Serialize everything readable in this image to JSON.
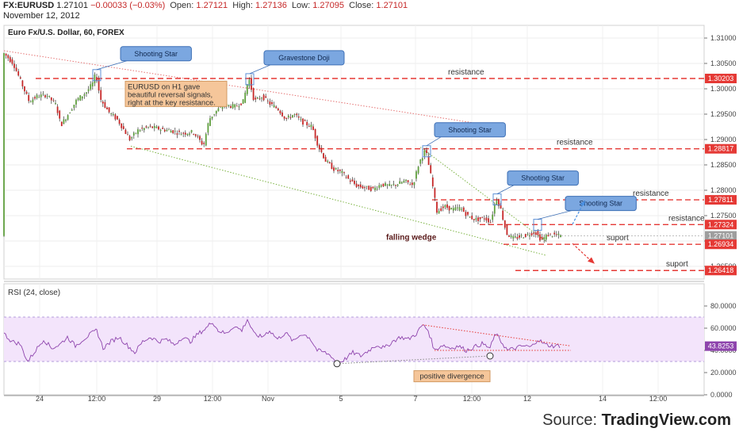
{
  "header": {
    "symbol": "FX:EURUSD",
    "last": "1.27101",
    "change": "−0.00033 (−0.03%)",
    "open_label": "Open:",
    "open": "1.27121",
    "high_label": "High:",
    "high": "1.27136",
    "low_label": "Low:",
    "low": "1.27095",
    "close_label": "Close:",
    "close": "1.27101",
    "date": "November 12, 2012"
  },
  "source": {
    "prefix": "Source: ",
    "brand": "TradingView.com"
  },
  "colors": {
    "up": "#5f9f3e",
    "down": "#c62828",
    "resistance": "#e53935",
    "callout_fill": "#7ba7e0",
    "callout_border": "#3d6fb5",
    "note_fill": "#f5c69a",
    "rsi_line": "#8e44ad",
    "rsi_band": "#f3e4fb"
  },
  "chart_data": [
    {
      "type": "candlestick",
      "title": "Euro Fx/U.S. Dollar, 60, FOREX",
      "ylim": [
        1.2625,
        1.3125
      ],
      "y_ticks": [
        "1.31000",
        "1.30500",
        "1.30000",
        "1.29500",
        "1.29000",
        "1.28500",
        "1.28000",
        "1.27500",
        "1.27000",
        "1.26500"
      ],
      "x_ticks": [
        {
          "label": "24",
          "t": 50
        },
        {
          "label": "12:00",
          "t": 122
        },
        {
          "label": "29",
          "t": 198
        },
        {
          "label": "12:00",
          "t": 268
        },
        {
          "label": "Nov",
          "t": 338
        },
        {
          "label": "5",
          "t": 430
        },
        {
          "label": "7",
          "t": 524
        },
        {
          "label": "12:00",
          "t": 595
        },
        {
          "label": "12",
          "t": 665
        },
        {
          "label": "14",
          "t": 760
        },
        {
          "label": "12:00",
          "t": 830
        }
      ],
      "price_path": [
        [
          5,
          1.3072
        ],
        [
          18,
          1.305
        ],
        [
          30,
          1.3005
        ],
        [
          38,
          1.2975
        ],
        [
          48,
          1.2985
        ],
        [
          60,
          1.2988
        ],
        [
          72,
          1.2968
        ],
        [
          78,
          1.2928
        ],
        [
          88,
          1.2952
        ],
        [
          98,
          1.2978
        ],
        [
          110,
          1.2993
        ],
        [
          118,
          1.301
        ],
        [
          122,
          1.303
        ],
        [
          128,
          1.298
        ],
        [
          138,
          1.2955
        ],
        [
          150,
          1.2938
        ],
        [
          165,
          1.29
        ],
        [
          175,
          1.2918
        ],
        [
          190,
          1.2925
        ],
        [
          205,
          1.292
        ],
        [
          215,
          1.2918
        ],
        [
          230,
          1.2912
        ],
        [
          245,
          1.2915
        ],
        [
          258,
          1.2888
        ],
        [
          265,
          1.294
        ],
        [
          275,
          1.2958
        ],
        [
          285,
          1.2968
        ],
        [
          298,
          1.2965
        ],
        [
          308,
          1.2975
        ],
        [
          315,
          1.3022
        ],
        [
          322,
          1.2975
        ],
        [
          332,
          1.2985
        ],
        [
          342,
          1.297
        ],
        [
          352,
          1.296
        ],
        [
          362,
          1.294
        ],
        [
          372,
          1.295
        ],
        [
          382,
          1.2935
        ],
        [
          395,
          1.2925
        ],
        [
          402,
          1.289
        ],
        [
          412,
          1.2858
        ],
        [
          422,
          1.2842
        ],
        [
          432,
          1.2835
        ],
        [
          442,
          1.282
        ],
        [
          452,
          1.2808
        ],
        [
          462,
          1.2805
        ],
        [
          472,
          1.2802
        ],
        [
          482,
          1.2812
        ],
        [
          492,
          1.2808
        ],
        [
          502,
          1.2812
        ],
        [
          512,
          1.2818
        ],
        [
          522,
          1.281
        ],
        [
          530,
          1.2855
        ],
        [
          538,
          1.288
        ],
        [
          546,
          1.2818
        ],
        [
          552,
          1.2758
        ],
        [
          562,
          1.2768
        ],
        [
          572,
          1.2762
        ],
        [
          582,
          1.2765
        ],
        [
          592,
          1.2748
        ],
        [
          602,
          1.2742
        ],
        [
          612,
          1.2745
        ],
        [
          620,
          1.2738
        ],
        [
          627,
          1.2785
        ],
        [
          632,
          1.2768
        ],
        [
          640,
          1.2715
        ],
        [
          648,
          1.2705
        ],
        [
          656,
          1.2708
        ],
        [
          666,
          1.2712
        ],
        [
          676,
          1.2718
        ],
        [
          684,
          1.2702
        ],
        [
          692,
          1.2712
        ],
        [
          700,
          1.2712
        ],
        [
          708,
          1.271
        ]
      ],
      "last_price": 1.27101,
      "price_labels": [
        {
          "price": 1.30203,
          "label": "1.30203",
          "kind": "resistance"
        },
        {
          "price": 1.28817,
          "label": "1.28817",
          "kind": "resistance"
        },
        {
          "price": 1.27811,
          "label": "1.27811",
          "kind": "resistance"
        },
        {
          "price": 1.27324,
          "label": "1.27324",
          "kind": "resistance"
        },
        {
          "price": 1.27101,
          "label": "1.27101",
          "kind": "last"
        },
        {
          "price": 1.26934,
          "label": "1.26934",
          "kind": "resistance"
        },
        {
          "price": 1.26418,
          "label": "1.26418",
          "kind": "resistance"
        }
      ],
      "levels": [
        {
          "price": 1.30203,
          "t0": 45,
          "t1": 888,
          "label": "resistance",
          "label_t": 565
        },
        {
          "price": 1.28817,
          "t0": 160,
          "t1": 888,
          "label": "resistance",
          "label_t": 702
        },
        {
          "price": 1.27811,
          "t0": 545,
          "t1": 888,
          "label": "resistance",
          "label_t": 798
        },
        {
          "price": 1.27324,
          "t0": 605,
          "t1": 888,
          "label": "resistance",
          "label_t": 843
        },
        {
          "price": 1.26934,
          "t0": 635,
          "t1": 888,
          "label": "suport",
          "label_t": 765
        },
        {
          "price": 1.26418,
          "t0": 650,
          "t1": 888,
          "label": "suport",
          "label_t": 840
        }
      ],
      "trendlines": [
        {
          "t0": 5,
          "p0": 1.3075,
          "t1": 630,
          "p1": 1.2925,
          "style": "upper"
        },
        {
          "t0": 165,
          "p0": 1.2887,
          "t1": 688,
          "p1": 1.2672,
          "style": "lower"
        },
        {
          "t0": 530,
          "p0": 1.2885,
          "t1": 688,
          "p1": 1.27,
          "style": "inner"
        }
      ],
      "callouts": [
        {
          "text": "Shooting Star",
          "t": 122,
          "p": 1.303,
          "bt": 152
        },
        {
          "text": "Gravestone Doji",
          "t": 315,
          "p": 1.3022,
          "bt": 333
        },
        {
          "text": "Shooting Star",
          "t": 538,
          "p": 1.288,
          "bt": 548
        },
        {
          "text": "Shooting Star",
          "t": 627,
          "p": 1.2785,
          "bt": 640
        },
        {
          "text": "Shooting Star",
          "t": 678,
          "p": 1.2735,
          "bt": 713
        }
      ],
      "note": [
        "EURUSD on H1 gave",
        "beautiful reversal signals,",
        "right at the key resistance."
      ],
      "pattern_label": "falling wedge"
    },
    {
      "type": "line",
      "title": "RSI (24, close)",
      "ylim": [
        0,
        100
      ],
      "y_ticks": [
        "80.0000",
        "60.0000",
        "40.0000",
        "20.0000",
        "0.0000"
      ],
      "band": [
        30,
        70
      ],
      "last_value": 43.8253,
      "last_label": "43.8253",
      "annotation": "positive divergence",
      "rsi_path": [
        [
          5,
          55
        ],
        [
          15,
          48
        ],
        [
          25,
          46
        ],
        [
          35,
          30
        ],
        [
          45,
          40
        ],
        [
          55,
          50
        ],
        [
          65,
          42
        ],
        [
          75,
          45
        ],
        [
          85,
          52
        ],
        [
          95,
          44
        ],
        [
          105,
          50
        ],
        [
          115,
          55
        ],
        [
          122,
          58
        ],
        [
          130,
          42
        ],
        [
          140,
          48
        ],
        [
          150,
          52
        ],
        [
          160,
          45
        ],
        [
          170,
          38
        ],
        [
          180,
          48
        ],
        [
          190,
          52
        ],
        [
          200,
          48
        ],
        [
          210,
          50
        ],
        [
          220,
          45
        ],
        [
          230,
          52
        ],
        [
          240,
          48
        ],
        [
          250,
          55
        ],
        [
          260,
          60
        ],
        [
          268,
          66
        ],
        [
          275,
          58
        ],
        [
          285,
          55
        ],
        [
          295,
          62
        ],
        [
          305,
          58
        ],
        [
          312,
          68
        ],
        [
          320,
          55
        ],
        [
          330,
          52
        ],
        [
          340,
          58
        ],
        [
          350,
          50
        ],
        [
          360,
          56
        ],
        [
          370,
          48
        ],
        [
          380,
          55
        ],
        [
          390,
          52
        ],
        [
          400,
          40
        ],
        [
          410,
          38
        ],
        [
          418,
          35
        ],
        [
          425,
          28
        ],
        [
          435,
          32
        ],
        [
          445,
          38
        ],
        [
          455,
          35
        ],
        [
          465,
          40
        ],
        [
          475,
          45
        ],
        [
          485,
          42
        ],
        [
          495,
          48
        ],
        [
          505,
          52
        ],
        [
          515,
          50
        ],
        [
          525,
          55
        ],
        [
          533,
          63
        ],
        [
          540,
          58
        ],
        [
          548,
          40
        ],
        [
          558,
          45
        ],
        [
          568,
          42
        ],
        [
          578,
          44
        ],
        [
          588,
          40
        ],
        [
          598,
          43
        ],
        [
          608,
          46
        ],
        [
          618,
          42
        ],
        [
          625,
          55
        ],
        [
          632,
          48
        ],
        [
          640,
          40
        ],
        [
          650,
          42
        ],
        [
          660,
          44
        ],
        [
          670,
          43
        ],
        [
          678,
          50
        ],
        [
          688,
          45
        ],
        [
          698,
          44
        ],
        [
          708,
          44
        ]
      ],
      "divergence_line": [
        [
          425,
          28
        ],
        [
          618,
          35
        ]
      ],
      "resistance_line": [
        [
          533,
          63
        ],
        [
          720,
          44
        ]
      ]
    }
  ]
}
